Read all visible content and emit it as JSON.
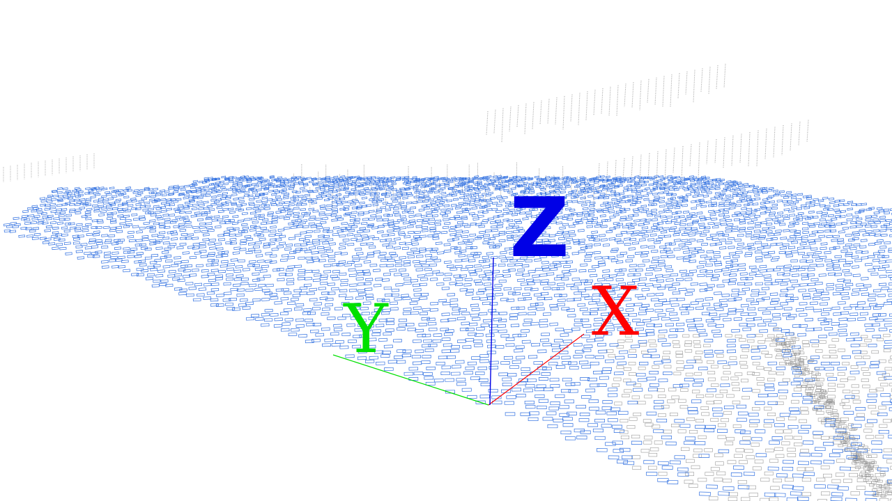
{
  "viewer": {
    "background": "#ffffff",
    "cloud_primary_color": "#2f6fe0",
    "cloud_secondary_color": "#9a9a9a"
  },
  "axes": {
    "x": {
      "label": "X",
      "color": "#ff0000"
    },
    "y": {
      "label": "Y",
      "color": "#00e000"
    },
    "z": {
      "label": "Z",
      "color": "#0000e6"
    }
  }
}
